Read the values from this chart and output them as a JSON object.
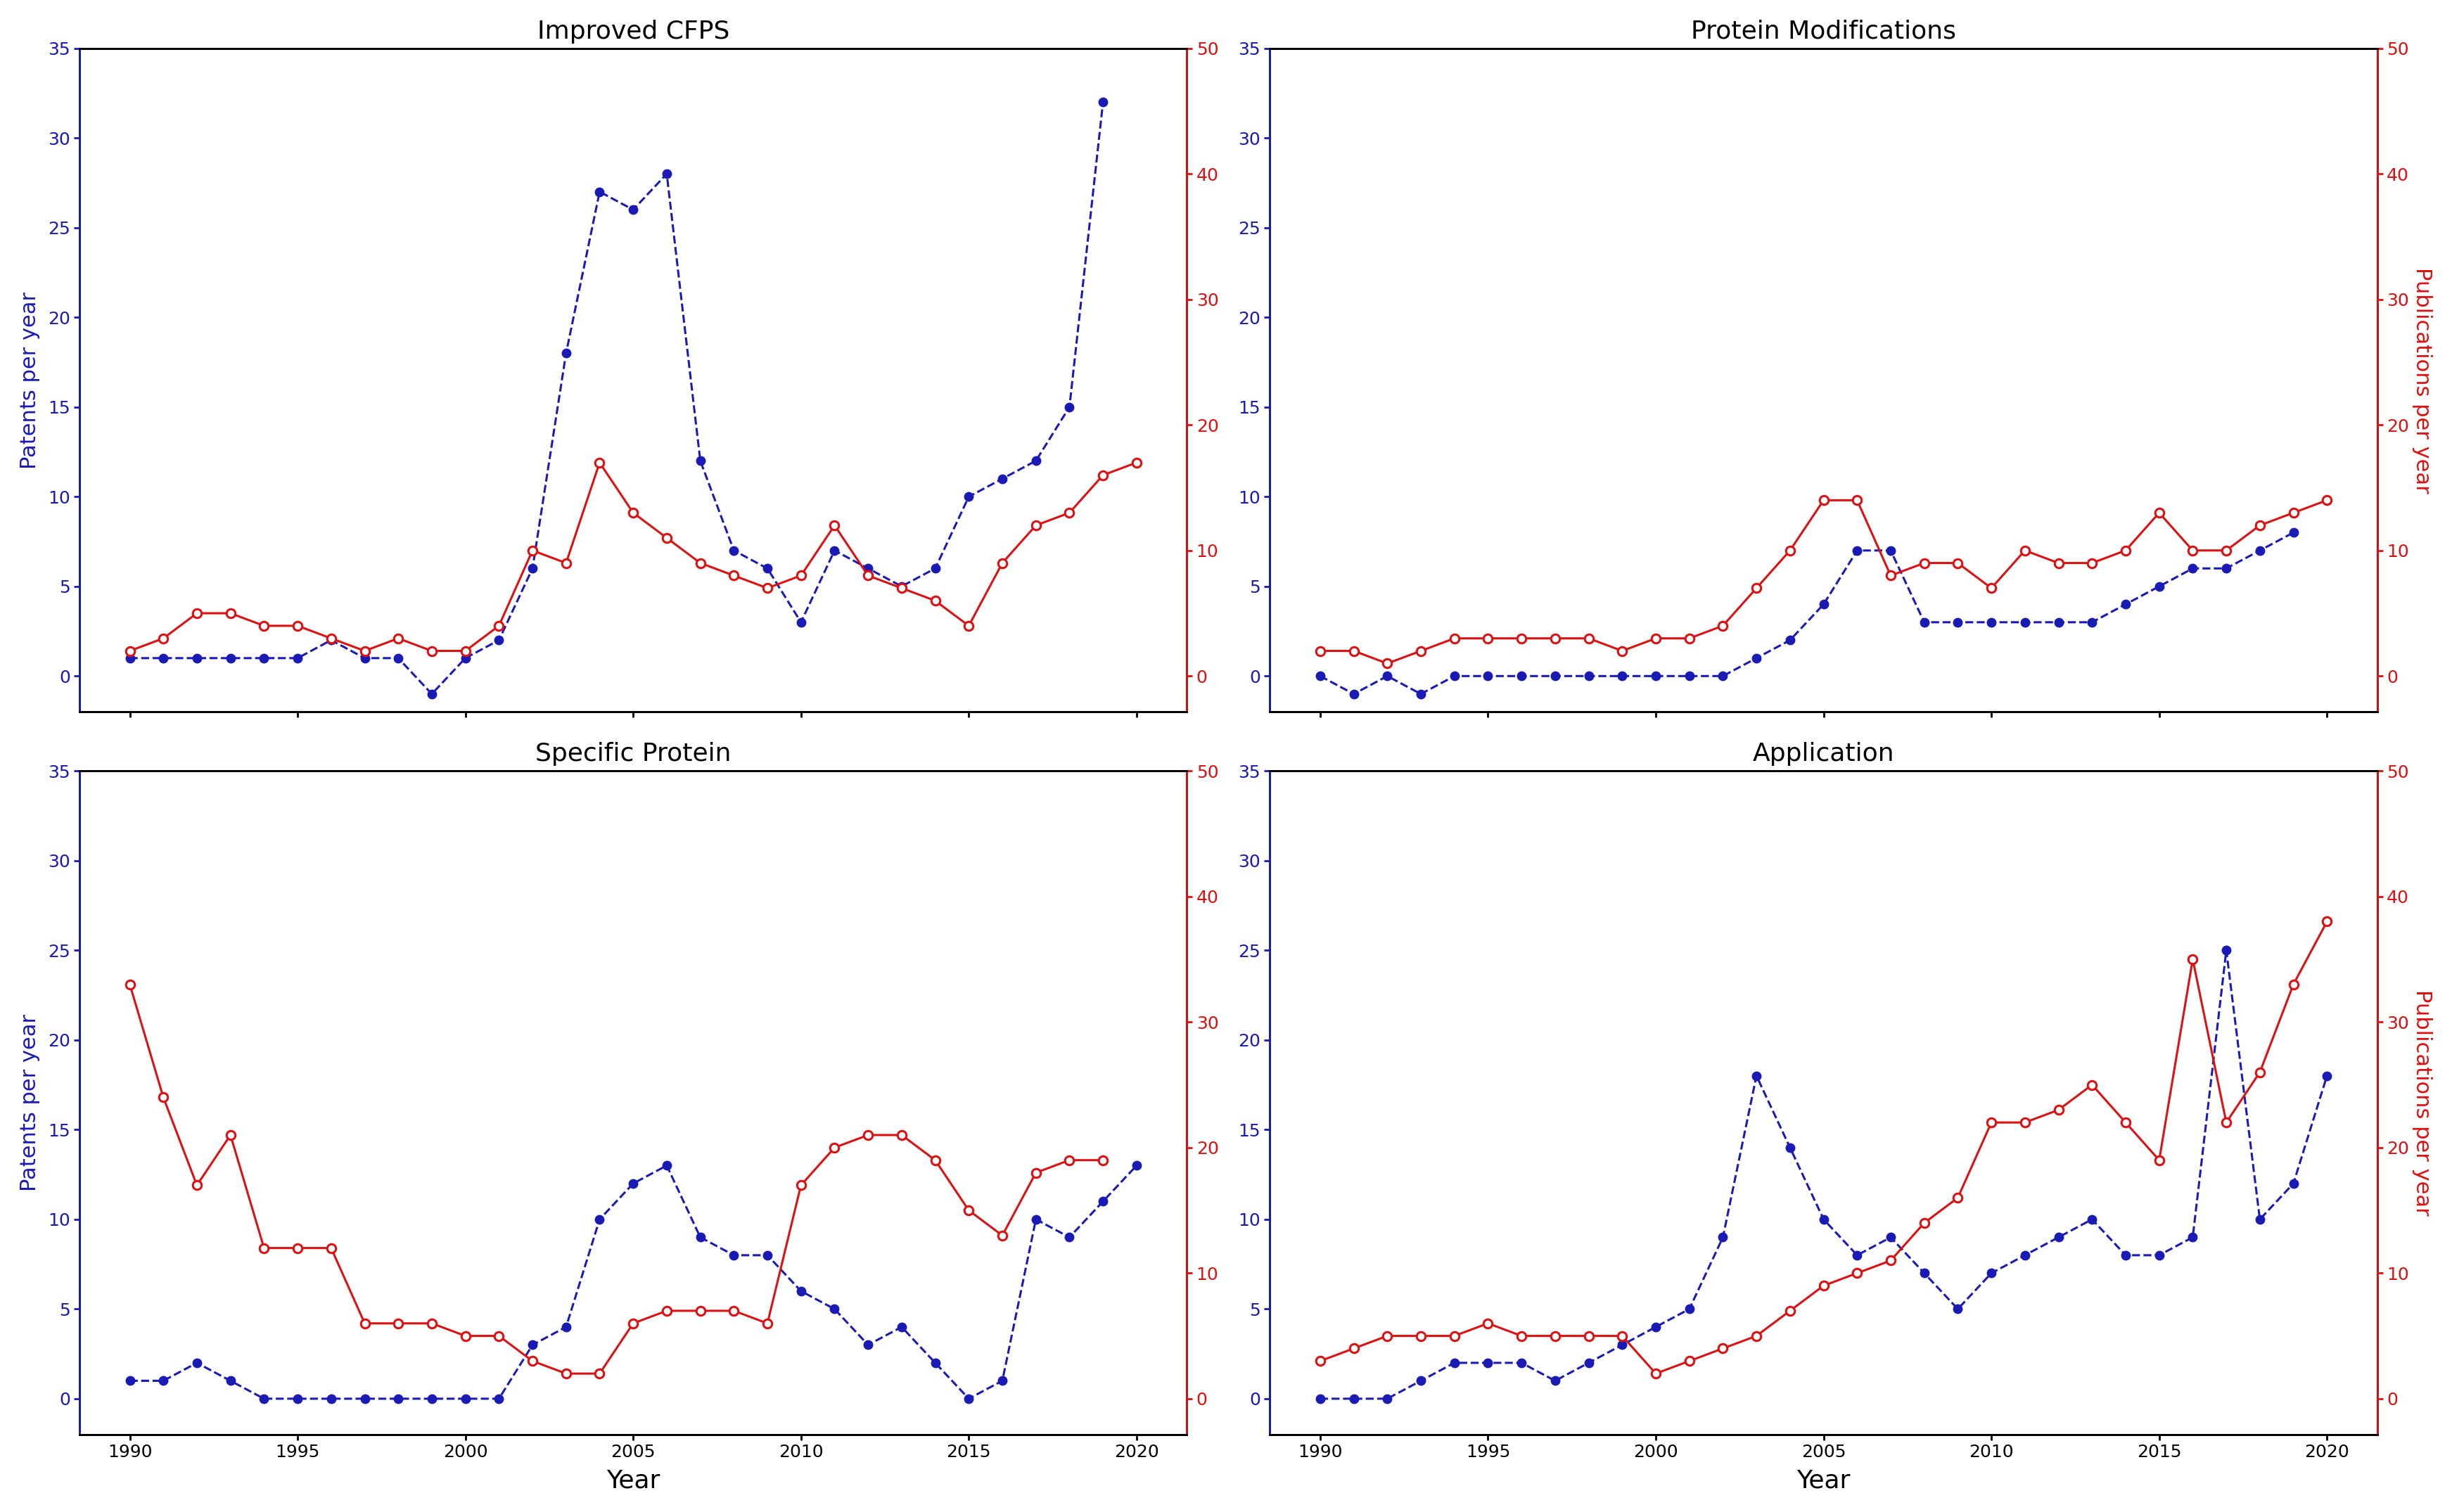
{
  "years": [
    1990,
    1991,
    1992,
    1993,
    1994,
    1995,
    1996,
    1997,
    1998,
    1999,
    2000,
    2001,
    2002,
    2003,
    2004,
    2005,
    2006,
    2007,
    2008,
    2009,
    2010,
    2011,
    2012,
    2013,
    2014,
    2015,
    2016,
    2017,
    2018,
    2019,
    2020
  ],
  "cfps_patents": [
    1,
    1,
    1,
    1,
    1,
    1,
    2,
    1,
    1,
    -1,
    1,
    2,
    6,
    18,
    27,
    26,
    28,
    12,
    7,
    6,
    3,
    7,
    6,
    5,
    6,
    10,
    11,
    12,
    15,
    32,
    null
  ],
  "cfps_pubs": [
    2,
    3,
    5,
    5,
    4,
    4,
    3,
    2,
    3,
    2,
    2,
    4,
    10,
    9,
    17,
    13,
    11,
    9,
    8,
    7,
    8,
    12,
    8,
    7,
    6,
    4,
    9,
    12,
    13,
    16,
    17
  ],
  "protmod_patents": [
    0,
    -1,
    0,
    -1,
    0,
    0,
    0,
    0,
    0,
    0,
    0,
    0,
    0,
    1,
    2,
    4,
    7,
    7,
    3,
    3,
    3,
    3,
    3,
    3,
    4,
    5,
    6,
    6,
    7,
    8,
    null
  ],
  "protmod_pubs": [
    2,
    2,
    1,
    2,
    3,
    3,
    3,
    3,
    3,
    2,
    3,
    3,
    4,
    7,
    10,
    14,
    14,
    8,
    9,
    9,
    7,
    10,
    9,
    9,
    10,
    13,
    10,
    10,
    12,
    13,
    14
  ],
  "specprot_patents": [
    1,
    1,
    2,
    1,
    0,
    0,
    0,
    0,
    0,
    0,
    0,
    0,
    3,
    4,
    10,
    12,
    13,
    9,
    8,
    8,
    6,
    5,
    3,
    4,
    2,
    0,
    1,
    10,
    9,
    11,
    13
  ],
  "specprot_pubs": [
    33,
    24,
    17,
    21,
    12,
    12,
    12,
    6,
    6,
    6,
    5,
    5,
    3,
    2,
    2,
    6,
    7,
    7,
    7,
    6,
    17,
    20,
    21,
    21,
    19,
    15,
    13,
    18,
    19,
    19,
    null
  ],
  "app_patents": [
    0,
    0,
    0,
    1,
    2,
    2,
    2,
    1,
    2,
    3,
    4,
    5,
    9,
    18,
    14,
    10,
    8,
    9,
    7,
    5,
    7,
    8,
    9,
    10,
    8,
    8,
    9,
    25,
    10,
    12,
    18
  ],
  "app_pubs": [
    3,
    4,
    5,
    5,
    5,
    6,
    5,
    5,
    5,
    5,
    2,
    3,
    4,
    5,
    7,
    9,
    10,
    11,
    14,
    16,
    22,
    22,
    23,
    25,
    22,
    19,
    35,
    22,
    26,
    33,
    38
  ],
  "titles": [
    "Improved CFPS",
    "Protein Modifications",
    "Specific Protein",
    "Application"
  ],
  "ylabel_left": "Patents per year",
  "ylabel_right": "Publications per year",
  "xlabel": "Year",
  "patent_color": "#1a1ab5",
  "pub_color": "#dd1111",
  "background_color": "#ffffff",
  "left_ylim": [
    -2,
    35
  ],
  "right_ylim": [
    -2.86,
    50
  ],
  "left_yticks": [
    0,
    5,
    10,
    15,
    20,
    25,
    30,
    35
  ],
  "right_yticks": [
    0,
    10,
    20,
    30,
    40,
    50
  ],
  "xticks": [
    1990,
    1995,
    2000,
    2005,
    2010,
    2015,
    2020
  ],
  "xlim": [
    1988.5,
    2021.5
  ]
}
